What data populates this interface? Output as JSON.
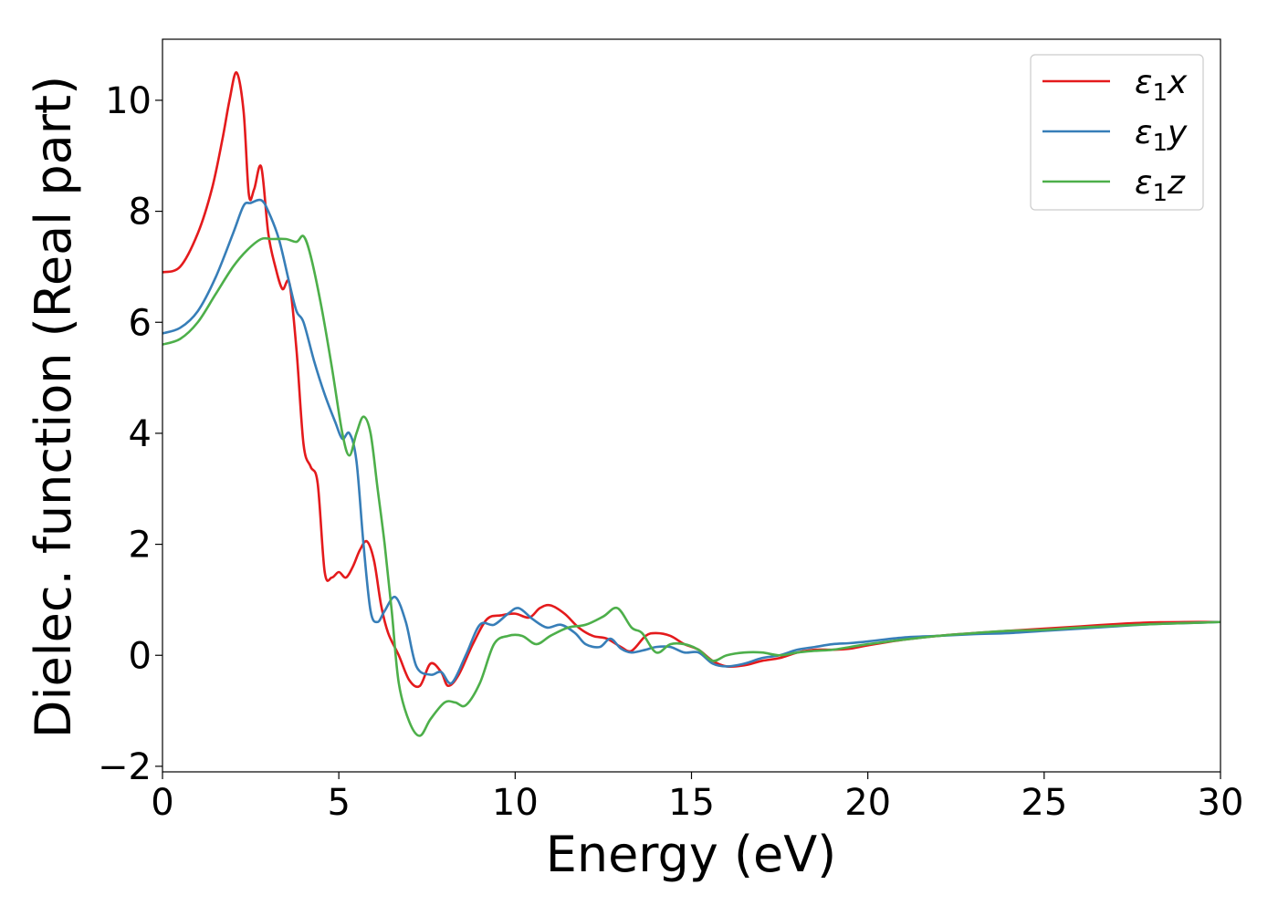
{
  "chart_data": {
    "type": "line",
    "title": "",
    "xlabel": "Energy (eV)",
    "ylabel": "Dielec. function (Real part)",
    "xlim": [
      0,
      30
    ],
    "ylim": [
      -2.1,
      11.1
    ],
    "xticks": [
      0,
      5,
      10,
      15,
      20,
      25,
      30
    ],
    "xtick_labels": [
      "0",
      "5",
      "10",
      "15",
      "20",
      "25",
      "30"
    ],
    "yticks": [
      -2,
      0,
      2,
      4,
      6,
      8,
      10
    ],
    "ytick_labels": [
      "−2",
      "0",
      "2",
      "4",
      "6",
      "8",
      "10"
    ],
    "grid": false,
    "legend_position": "top-right",
    "series": [
      {
        "name": "ε₁x",
        "label_base": "ε",
        "label_sub": "1",
        "label_suffix": "x",
        "color": "#e41a1c",
        "x": [
          0,
          0.5,
          1.0,
          1.4,
          1.7,
          1.9,
          2.1,
          2.3,
          2.45,
          2.6,
          2.8,
          3.0,
          3.2,
          3.4,
          3.6,
          3.8,
          4.0,
          4.2,
          4.4,
          4.6,
          4.8,
          5.0,
          5.2,
          5.4,
          5.6,
          5.8,
          6.0,
          6.2,
          6.4,
          6.7,
          7.0,
          7.3,
          7.6,
          7.9,
          8.1,
          8.4,
          8.8,
          9.2,
          9.6,
          10.0,
          10.4,
          10.7,
          11.0,
          11.4,
          11.8,
          12.2,
          12.6,
          13.0,
          13.3,
          13.7,
          14.0,
          14.4,
          14.8,
          15.2,
          15.6,
          16.0,
          16.5,
          17.0,
          17.5,
          18.0,
          18.5,
          19.0,
          19.5,
          20.0,
          21.0,
          22.0,
          23.0,
          24.0,
          25.0,
          26.0,
          27.0,
          28.0,
          29.0,
          30.0
        ],
        "y": [
          6.9,
          7.0,
          7.6,
          8.4,
          9.3,
          10.0,
          10.5,
          9.8,
          8.3,
          8.4,
          8.8,
          7.6,
          7.0,
          6.6,
          6.7,
          5.5,
          3.8,
          3.4,
          3.1,
          1.5,
          1.4,
          1.5,
          1.4,
          1.6,
          1.9,
          2.05,
          1.7,
          0.9,
          0.4,
          0.0,
          -0.45,
          -0.55,
          -0.15,
          -0.3,
          -0.55,
          -0.35,
          0.2,
          0.65,
          0.72,
          0.75,
          0.68,
          0.85,
          0.9,
          0.75,
          0.5,
          0.35,
          0.3,
          0.15,
          0.08,
          0.35,
          0.4,
          0.35,
          0.2,
          0.1,
          -0.1,
          -0.2,
          -0.18,
          -0.1,
          -0.05,
          0.05,
          0.1,
          0.1,
          0.12,
          0.18,
          0.28,
          0.35,
          0.4,
          0.44,
          0.48,
          0.52,
          0.56,
          0.59,
          0.6,
          0.6
        ]
      },
      {
        "name": "ε₁y",
        "label_base": "ε",
        "label_sub": "1",
        "label_suffix": "y",
        "color": "#377eb8",
        "x": [
          0,
          0.5,
          1.0,
          1.5,
          2.0,
          2.3,
          2.5,
          2.8,
          3.0,
          3.3,
          3.6,
          3.8,
          4.0,
          4.3,
          4.6,
          4.9,
          5.1,
          5.3,
          5.5,
          5.7,
          5.9,
          6.1,
          6.3,
          6.6,
          6.9,
          7.2,
          7.6,
          7.9,
          8.2,
          8.6,
          9.0,
          9.4,
          9.8,
          10.1,
          10.5,
          10.9,
          11.3,
          11.7,
          12.0,
          12.4,
          12.7,
          13.0,
          13.3,
          13.7,
          14.0,
          14.4,
          14.8,
          15.2,
          15.6,
          16.0,
          16.5,
          17.0,
          17.5,
          18.0,
          18.5,
          19.0,
          19.5,
          20.0,
          21.0,
          22.0,
          23.0,
          24.0,
          25.0,
          26.0,
          27.0,
          28.0,
          29.0,
          30.0
        ],
        "y": [
          5.8,
          5.9,
          6.2,
          6.8,
          7.6,
          8.1,
          8.15,
          8.2,
          8.0,
          7.5,
          6.7,
          6.2,
          6.0,
          5.3,
          4.7,
          4.2,
          3.9,
          4.0,
          3.5,
          2.0,
          0.8,
          0.6,
          0.8,
          1.05,
          0.6,
          -0.2,
          -0.35,
          -0.3,
          -0.5,
          0.0,
          0.55,
          0.55,
          0.75,
          0.85,
          0.65,
          0.5,
          0.55,
          0.4,
          0.2,
          0.15,
          0.3,
          0.12,
          0.05,
          0.1,
          0.15,
          0.15,
          0.05,
          0.05,
          -0.15,
          -0.2,
          -0.15,
          -0.05,
          0.0,
          0.1,
          0.15,
          0.2,
          0.22,
          0.25,
          0.32,
          0.35,
          0.38,
          0.4,
          0.44,
          0.48,
          0.52,
          0.56,
          0.58,
          0.6
        ]
      },
      {
        "name": "ε₁z",
        "label_base": "ε",
        "label_sub": "1",
        "label_suffix": "z",
        "color": "#4daf4a",
        "x": [
          0,
          0.5,
          1.0,
          1.5,
          2.0,
          2.4,
          2.8,
          3.1,
          3.5,
          3.8,
          4.0,
          4.2,
          4.5,
          4.8,
          5.1,
          5.3,
          5.5,
          5.7,
          5.9,
          6.1,
          6.3,
          6.5,
          6.7,
          7.0,
          7.3,
          7.6,
          8.0,
          8.3,
          8.6,
          9.0,
          9.4,
          9.8,
          10.2,
          10.6,
          11.0,
          11.5,
          12.0,
          12.5,
          12.9,
          13.3,
          13.6,
          14.0,
          14.4,
          14.8,
          15.2,
          15.6,
          16.0,
          16.5,
          17.0,
          17.5,
          18.0,
          18.5,
          19.0,
          19.5,
          20.0,
          21.0,
          22.0,
          23.0,
          24.0,
          25.0,
          26.0,
          27.0,
          28.0,
          29.0,
          30.0
        ],
        "y": [
          5.6,
          5.7,
          6.0,
          6.5,
          7.0,
          7.3,
          7.5,
          7.5,
          7.5,
          7.45,
          7.55,
          7.2,
          6.3,
          5.2,
          4.0,
          3.6,
          4.0,
          4.3,
          4.0,
          3.0,
          2.0,
          0.8,
          -0.5,
          -1.2,
          -1.45,
          -1.15,
          -0.85,
          -0.85,
          -0.9,
          -0.5,
          0.2,
          0.35,
          0.35,
          0.2,
          0.35,
          0.5,
          0.55,
          0.7,
          0.85,
          0.5,
          0.4,
          0.05,
          0.2,
          0.2,
          0.1,
          -0.1,
          0.0,
          0.05,
          0.05,
          0.0,
          0.05,
          0.08,
          0.1,
          0.15,
          0.2,
          0.28,
          0.35,
          0.4,
          0.44,
          0.46,
          0.5,
          0.53,
          0.56,
          0.58,
          0.6
        ]
      }
    ]
  }
}
